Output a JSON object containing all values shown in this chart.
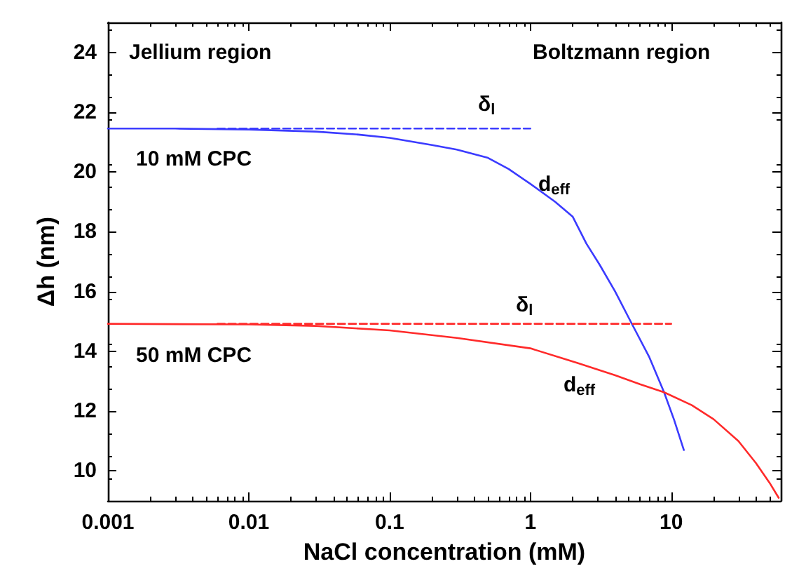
{
  "chart_data": {
    "type": "line",
    "xlabel": "NaCl concentration (mM)",
    "ylabel": "Δh (nm)",
    "log": "x",
    "xlim": [
      0.001,
      60
    ],
    "xticks": [
      0.001,
      0.01,
      0.1,
      1,
      10
    ],
    "ylim": [
      9,
      25
    ],
    "yticks": [
      10,
      12,
      14,
      16,
      18,
      20,
      22,
      24
    ],
    "grid": false,
    "marker": "none",
    "series": [
      {
        "color": "#3b3bff",
        "line_style": "solid",
        "x": [
          0.001,
          0.003,
          0.01,
          0.03,
          0.06,
          0.1,
          0.2,
          0.3,
          0.5,
          0.7,
          1,
          1.5,
          2,
          2.5,
          3.1,
          4,
          5.15,
          7,
          8.9,
          10.5,
          12.3
        ],
        "values": [
          21.45,
          21.45,
          21.42,
          21.35,
          21.25,
          21.14,
          20.9,
          20.75,
          20.47,
          20.1,
          19.6,
          19.0,
          18.5,
          17.6,
          16.9,
          16.0,
          15,
          13.8,
          12.63,
          11.7,
          10.7
        ]
      },
      {
        "color": "#3b3bff",
        "line_style": "dashed",
        "x": [
          0.006,
          1
        ],
        "values": [
          21.45,
          21.45
        ]
      },
      {
        "color": "#ff2a2a",
        "line_style": "solid",
        "x": [
          0.001,
          0.01,
          0.03,
          0.1,
          0.3,
          1,
          2.2,
          4,
          6,
          8.9,
          14,
          20,
          30,
          40,
          50,
          58
        ],
        "values": [
          14.92,
          14.9,
          14.85,
          14.7,
          14.45,
          14.1,
          13.6,
          13.2,
          12.9,
          12.63,
          12.2,
          11.73,
          11.0,
          10.26,
          9.6,
          9.1
        ]
      },
      {
        "color": "#ff2a2a",
        "line_style": "dashed",
        "x": [
          0.006,
          10
        ],
        "values": [
          14.92,
          14.92
        ]
      }
    ],
    "annotations": [
      "Jellium region",
      "Boltzmann region",
      "δ$_{l}$",
      "10 mM CPC",
      "d$_{eff}$",
      "δ$_{l}$",
      "50 mM CPC",
      "d$_{eff}$"
    ]
  }
}
